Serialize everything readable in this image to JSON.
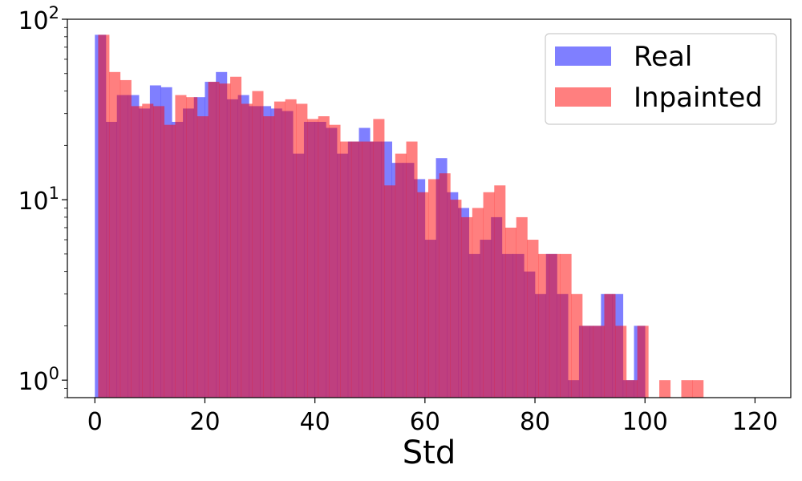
{
  "chart_data": {
    "type": "bar",
    "histogram": true,
    "title": "",
    "xlabel": "Std",
    "ylabel": "",
    "xlim": [
      -5,
      126.5
    ],
    "ylim": [
      0.8,
      100
    ],
    "yscale": "log",
    "grid": false,
    "legend_position": "top-right",
    "x_ticks": [
      0,
      20,
      40,
      60,
      80,
      100,
      120
    ],
    "x_tick_labels": [
      "0",
      "20",
      "40",
      "60",
      "80",
      "100",
      "120"
    ],
    "y_ticks": [
      1,
      10,
      100
    ],
    "y_tick_labels": [
      {
        "base": "10",
        "exp": "0"
      },
      {
        "base": "10",
        "exp": "1"
      },
      {
        "base": "10",
        "exp": "2"
      }
    ],
    "series": [
      {
        "name": "Real",
        "color": "#0000ff",
        "opacity": 0.5,
        "bin_start": 0,
        "bin_width": 2.0,
        "counts": [
          82,
          27,
          38,
          38,
          32,
          43,
          42,
          27,
          32,
          37,
          45,
          51,
          36,
          38,
          33,
          33,
          32,
          31,
          18,
          27,
          27,
          25,
          18,
          21,
          25,
          21,
          21,
          16,
          16,
          13,
          6,
          17,
          11,
          9,
          5,
          6,
          8,
          5,
          5,
          4,
          3,
          5,
          3,
          1,
          2,
          2,
          3,
          3,
          1,
          2,
          0,
          0,
          0,
          0,
          0,
          0,
          0,
          0,
          0,
          0
        ]
      },
      {
        "name": "Inpainted",
        "color": "#ff0000",
        "opacity": 0.5,
        "bin_start": 0.6,
        "bin_width": 2.0,
        "counts": [
          82,
          51,
          46,
          33,
          34,
          33,
          26,
          38,
          37,
          29,
          45,
          44,
          48,
          34,
          40,
          29,
          35,
          36,
          34,
          28,
          29,
          26,
          21,
          21,
          21,
          28,
          12,
          18,
          21,
          11,
          13,
          14,
          10,
          8,
          9,
          11,
          12,
          7,
          8,
          6,
          5,
          5,
          5,
          3,
          2,
          2,
          3,
          2,
          1,
          2,
          0,
          1,
          0,
          1,
          1,
          0,
          0,
          0,
          0,
          0
        ]
      }
    ]
  }
}
